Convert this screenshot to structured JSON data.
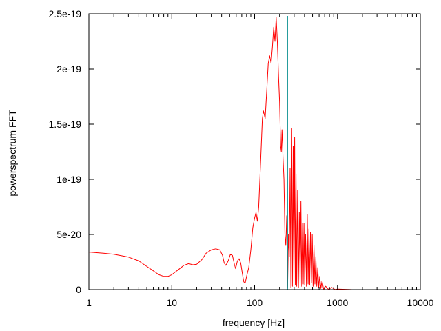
{
  "chart_data": {
    "type": "line",
    "title": "",
    "xlabel": "frequency [Hz]",
    "ylabel": "powerspectrum FFT",
    "x_scale": "log",
    "xlim": [
      1,
      10000
    ],
    "ylim": [
      0,
      2.5e-19
    ],
    "x_ticks": [
      1,
      10,
      100,
      1000,
      10000
    ],
    "x_tick_labels": [
      "1",
      "10",
      "100",
      "1000",
      "10000"
    ],
    "y_ticks": [
      0,
      5e-20,
      1e-19,
      1.5e-19,
      2e-19,
      2.5e-19
    ],
    "y_tick_labels": [
      "0",
      "5e-20",
      "1e-19",
      "1.5e-19",
      "2e-19",
      "2.5e-19"
    ],
    "grid": false,
    "legend": "none",
    "colors": {
      "series": "#ff0000",
      "marker": "#008b8b",
      "axes": "#000000"
    },
    "series": [
      {
        "color": "#ff0000",
        "points": [
          [
            1,
            3.4e-20
          ],
          [
            1.5,
            3.3e-20
          ],
          [
            2,
            3.2e-20
          ],
          [
            3,
            2.95e-20
          ],
          [
            4,
            2.6e-20
          ],
          [
            5,
            2.1e-20
          ],
          [
            6,
            1.7e-20
          ],
          [
            7,
            1.35e-20
          ],
          [
            8,
            1.2e-20
          ],
          [
            9,
            1.2e-20
          ],
          [
            10,
            1.35e-20
          ],
          [
            12,
            1.8e-20
          ],
          [
            14,
            2.2e-20
          ],
          [
            16,
            2.35e-20
          ],
          [
            18,
            2.25e-20
          ],
          [
            20,
            2.3e-20
          ],
          [
            23,
            2.7e-20
          ],
          [
            26,
            3.3e-20
          ],
          [
            30,
            3.6e-20
          ],
          [
            34,
            3.7e-20
          ],
          [
            38,
            3.6e-20
          ],
          [
            41,
            3.1e-20
          ],
          [
            43,
            2.4e-20
          ],
          [
            45,
            2.2e-20
          ],
          [
            48,
            2.6e-20
          ],
          [
            51,
            3.2e-20
          ],
          [
            54,
            3.1e-20
          ],
          [
            57,
            2.3e-20
          ],
          [
            59,
            1.9e-20
          ],
          [
            62,
            2.6e-20
          ],
          [
            65,
            2.8e-20
          ],
          [
            68,
            2.4e-20
          ],
          [
            71,
            1.5e-20
          ],
          [
            74,
            7e-21
          ],
          [
            77,
            6e-21
          ],
          [
            80,
            1.2e-20
          ],
          [
            85,
            2e-20
          ],
          [
            90,
            3.6e-20
          ],
          [
            95,
            5.6e-20
          ],
          [
            100,
            6.5e-20
          ],
          [
            104,
            7e-20
          ],
          [
            108,
            6.2e-20
          ],
          [
            112,
            7.5e-20
          ],
          [
            118,
            1.15e-19
          ],
          [
            124,
            1.55e-19
          ],
          [
            128,
            1.62e-19
          ],
          [
            134,
            1.55e-19
          ],
          [
            140,
            1.8e-19
          ],
          [
            146,
            2.05e-19
          ],
          [
            152,
            2.12e-19
          ],
          [
            158,
            2.05e-19
          ],
          [
            164,
            2.2e-19
          ],
          [
            170,
            2.38e-19
          ],
          [
            176,
            2.25e-19
          ],
          [
            182,
            2.47e-19
          ],
          [
            188,
            2.25e-19
          ],
          [
            194,
            1.95e-19
          ],
          [
            200,
            1.7e-19
          ],
          [
            206,
            1.3e-19
          ],
          [
            210,
            1.25e-19
          ],
          [
            214,
            1.45e-19
          ],
          [
            220,
            1.2e-19
          ],
          [
            226,
            1e-19
          ],
          [
            232,
            5e-20
          ],
          [
            238,
            4e-20
          ],
          [
            244,
            6.7e-20
          ],
          [
            250,
            2e-21
          ],
          [
            256,
            5e-20
          ],
          [
            262,
            3e-20
          ],
          [
            268,
            1.1e-19
          ],
          [
            274,
            2e-21
          ],
          [
            280,
            1.46e-19
          ],
          [
            286,
            3e-21
          ],
          [
            292,
            1.3e-19
          ],
          [
            298,
            3e-21
          ],
          [
            304,
            1.38e-19
          ],
          [
            310,
            4e-21
          ],
          [
            316,
            1.05e-19
          ],
          [
            322,
            3e-21
          ],
          [
            330,
            9e-20
          ],
          [
            338,
            2e-21
          ],
          [
            346,
            7e-20
          ],
          [
            354,
            4e-21
          ],
          [
            362,
            8e-20
          ],
          [
            370,
            3e-21
          ],
          [
            378,
            6e-20
          ],
          [
            386,
            5e-21
          ],
          [
            394,
            6e-20
          ],
          [
            402,
            4e-21
          ],
          [
            412,
            5e-20
          ],
          [
            422,
            3e-21
          ],
          [
            432,
            6.8e-20
          ],
          [
            442,
            5e-21
          ],
          [
            452,
            5.5e-20
          ],
          [
            462,
            4e-21
          ],
          [
            472,
            5.2e-20
          ],
          [
            484,
            6e-21
          ],
          [
            496,
            5e-20
          ],
          [
            508,
            3e-21
          ],
          [
            520,
            4e-20
          ],
          [
            534,
            5e-21
          ],
          [
            548,
            3e-20
          ],
          [
            562,
            3e-21
          ],
          [
            578,
            2e-20
          ],
          [
            594,
            2e-21
          ],
          [
            610,
            1.2e-20
          ],
          [
            630,
            1e-21
          ],
          [
            650,
            8e-21
          ],
          [
            680,
            5e-22
          ],
          [
            720,
            3e-21
          ],
          [
            780,
            2e-22
          ],
          [
            850,
            2e-21
          ],
          [
            930,
            1e-22
          ],
          [
            1000,
            5e-22
          ],
          [
            1500,
            0
          ],
          [
            3000,
            0
          ],
          [
            10000,
            0
          ]
        ]
      }
    ],
    "vertical_line": {
      "x": 250,
      "color": "#008b8b"
    }
  }
}
